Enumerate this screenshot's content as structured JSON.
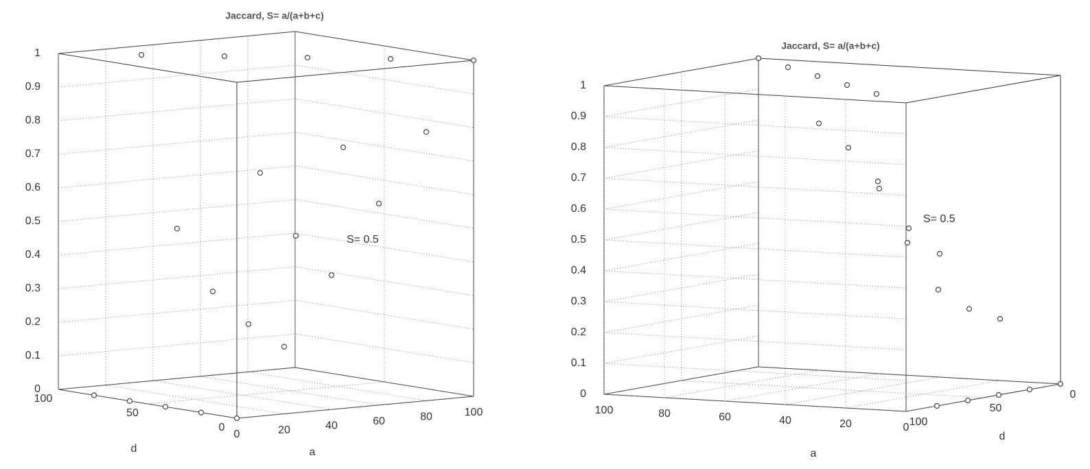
{
  "chart_data": [
    {
      "type": "scatter3d",
      "title": "Jaccard, S= a/(a+b+c)",
      "xlabel": "a",
      "ylabel": "d",
      "annotation": "S= 0.5",
      "xlim": [
        0,
        100
      ],
      "ylim": [
        0,
        100
      ],
      "zlim": [
        0,
        1
      ],
      "xticks": [
        0,
        20,
        40,
        60,
        80,
        100
      ],
      "yticks": [
        0,
        50,
        100
      ],
      "zticks": [
        0,
        0.1,
        0.2,
        0.3,
        0.4,
        0.5,
        0.6,
        0.7,
        0.8,
        0.9,
        1
      ],
      "grid": true,
      "x": [
        0,
        20,
        40,
        60,
        80,
        100,
        0,
        20,
        40,
        60,
        80,
        0,
        20,
        40,
        60,
        0,
        20,
        40,
        0,
        20
      ],
      "y": [
        0,
        0,
        0,
        0,
        0,
        0,
        20,
        20,
        20,
        20,
        20,
        40,
        40,
        40,
        40,
        60,
        60,
        60,
        80,
        80
      ],
      "z": [
        0,
        0.2,
        0.4,
        0.6,
        0.8,
        1,
        0,
        0.25,
        0.5,
        0.75,
        1,
        0,
        0.33,
        0.67,
        1,
        0,
        0.5,
        1,
        0,
        1
      ]
    },
    {
      "type": "scatter3d",
      "title": "Jaccard, S= a/(a+b+c)",
      "xlabel": "a",
      "ylabel": "d",
      "annotation": "S= 0.5",
      "xlim": [
        0,
        100
      ],
      "ylim": [
        0,
        100
      ],
      "zlim": [
        0,
        1
      ],
      "xticks": [
        0,
        20,
        40,
        60,
        80,
        100
      ],
      "yticks": [
        0,
        50,
        100
      ],
      "zticks": [
        0,
        0.1,
        0.2,
        0.3,
        0.4,
        0.5,
        0.6,
        0.7,
        0.8,
        0.9,
        1
      ],
      "grid": true,
      "x": [
        0,
        20,
        40,
        60,
        80,
        100,
        0,
        20,
        40,
        60,
        80,
        0,
        20,
        40,
        60,
        0,
        20,
        40,
        0,
        20
      ],
      "y": [
        0,
        0,
        0,
        0,
        0,
        0,
        20,
        20,
        20,
        20,
        20,
        40,
        40,
        40,
        40,
        60,
        60,
        60,
        80,
        80
      ],
      "z": [
        0,
        0.2,
        0.4,
        0.6,
        0.8,
        1,
        0,
        0.25,
        0.5,
        0.75,
        1,
        0,
        0.33,
        0.67,
        1,
        0,
        0.5,
        1,
        0,
        1
      ]
    }
  ]
}
